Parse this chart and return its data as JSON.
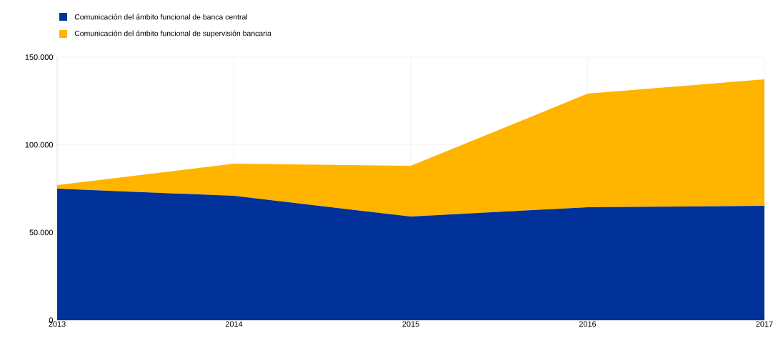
{
  "chart_data": {
    "type": "area",
    "stacked": true,
    "x": [
      2013,
      2014,
      2015,
      2016,
      2017
    ],
    "series": [
      {
        "name": "Comunicación del ámbito funcional de banca central",
        "color": "#003299",
        "values": [
          75000,
          70900,
          59100,
          64400,
          65200
        ]
      },
      {
        "name": "Comunicación del ámbito funcional de supervisión bancaria",
        "color": "#ffb400",
        "values": [
          2000,
          18400,
          28900,
          64800,
          72200
        ]
      }
    ],
    "xlim": [
      2013,
      2017
    ],
    "xticks": [
      2013,
      2014,
      2015,
      2016,
      2017
    ],
    "ylim": [
      0,
      150000
    ],
    "yticks": [
      0,
      {
        "value": 50000,
        "label": "50.000"
      },
      {
        "value": 100000,
        "label": "100.000"
      },
      {
        "value": 150000,
        "label": "150.000"
      }
    ],
    "grid": true,
    "legend": "top left"
  }
}
